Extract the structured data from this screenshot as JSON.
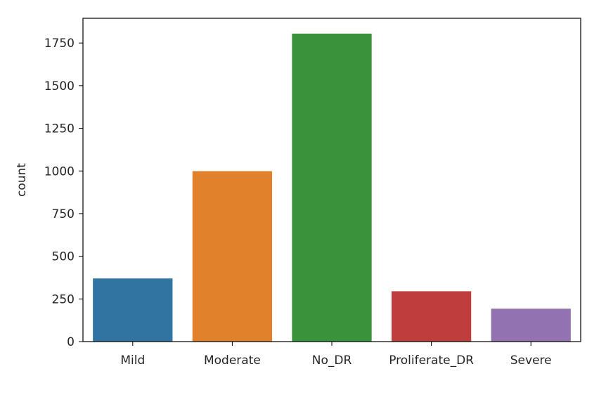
{
  "chart_data": {
    "type": "bar",
    "categories": [
      "Mild",
      "Moderate",
      "No_DR",
      "Proliferate_DR",
      "Severe"
    ],
    "values": [
      370,
      999,
      1805,
      295,
      193
    ],
    "colors": [
      "#3274a1",
      "#e1812c",
      "#3a923a",
      "#c03d3e",
      "#9372b2"
    ],
    "xlabel": "",
    "ylabel": "count",
    "ylim": [
      0,
      1895
    ],
    "yticks": [
      0,
      250,
      500,
      750,
      1000,
      1250,
      1500,
      1750
    ],
    "ytick_labels": [
      "0",
      "250",
      "500",
      "750",
      "1000",
      "1250",
      "1500",
      "1750"
    ],
    "grid": false
  }
}
